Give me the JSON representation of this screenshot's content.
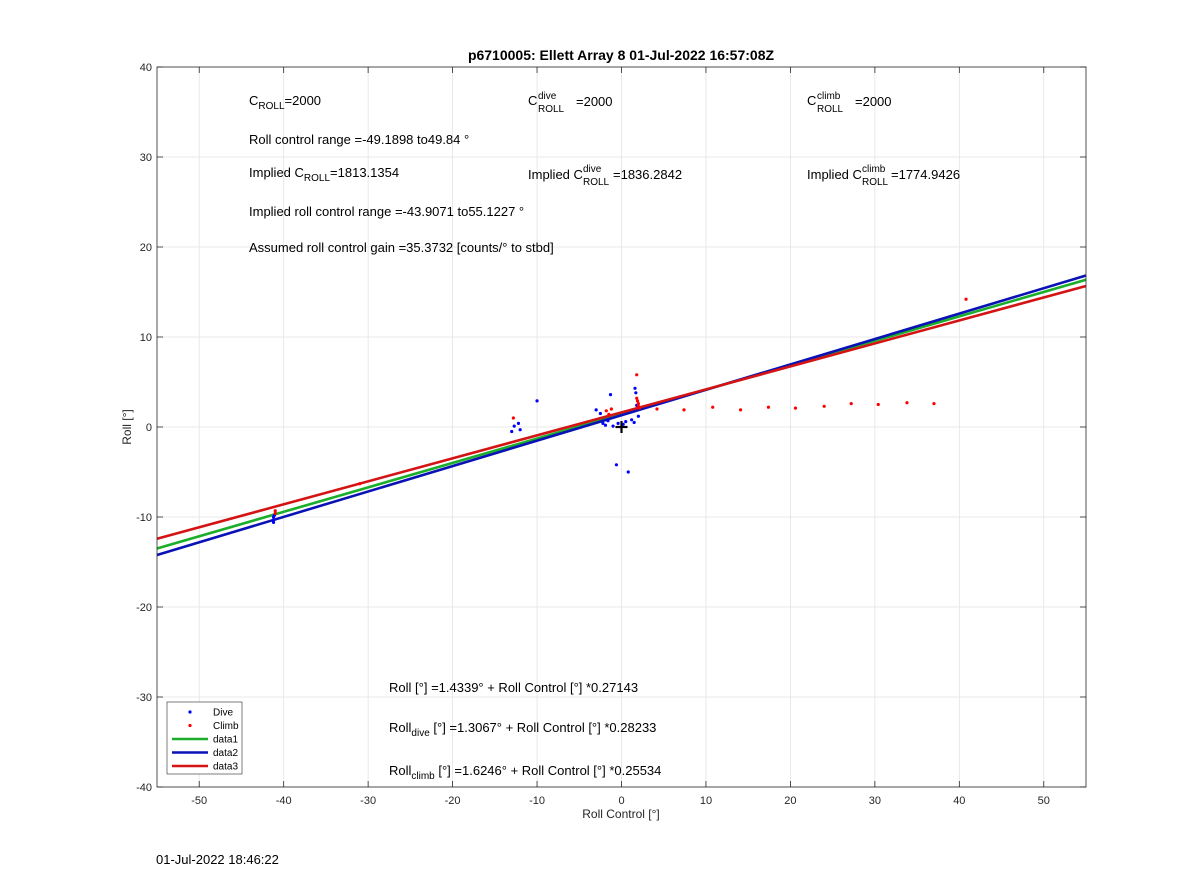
{
  "chart_data": {
    "type": "scatter",
    "title": "p6710005: Ellett Array 8 01-Jul-2022 16:57:08Z",
    "xlabel": "Roll Control [°]",
    "ylabel": "Roll [°]",
    "xlim": [
      -55,
      55
    ],
    "ylim": [
      -40,
      40
    ],
    "xticks": [
      -50,
      -40,
      -30,
      -20,
      -10,
      0,
      10,
      20,
      30,
      40,
      50
    ],
    "yticks": [
      -40,
      -30,
      -20,
      -10,
      0,
      10,
      20,
      30,
      40
    ],
    "grid": true,
    "legend_position": "bottom-left",
    "series": [
      {
        "name": "Dive",
        "kind": "points",
        "color": "#0000ff",
        "points": [
          [
            -41.2,
            -10.6
          ],
          [
            -41.2,
            -10.3
          ],
          [
            -41.2,
            -10.0
          ],
          [
            -41.1,
            -9.8
          ],
          [
            -13.0,
            -0.5
          ],
          [
            -12.7,
            0.1
          ],
          [
            -12.2,
            0.4
          ],
          [
            -12.0,
            -0.3
          ],
          [
            -10.0,
            2.9
          ],
          [
            -3.0,
            1.9
          ],
          [
            -2.5,
            1.5
          ],
          [
            -2.2,
            0.4
          ],
          [
            -1.9,
            0.2
          ],
          [
            -1.6,
            0.7
          ],
          [
            -1.3,
            3.6
          ],
          [
            -1.0,
            0.1
          ],
          [
            -0.6,
            -4.2
          ],
          [
            -0.4,
            0.4
          ],
          [
            0.2,
            0.3
          ],
          [
            0.5,
            0.6
          ],
          [
            0.8,
            -5.0
          ],
          [
            1.2,
            0.8
          ],
          [
            1.5,
            0.5
          ],
          [
            1.6,
            4.3
          ],
          [
            1.7,
            3.8
          ],
          [
            1.8,
            2.4
          ],
          [
            2.0,
            1.2
          ]
        ]
      },
      {
        "name": "Climb",
        "kind": "points",
        "color": "#ff0000",
        "points": [
          [
            -41.0,
            -9.3
          ],
          [
            -41.0,
            -9.6
          ],
          [
            -31.0,
            -6.3
          ],
          [
            -12.8,
            1.0
          ],
          [
            -1.8,
            1.8
          ],
          [
            -1.5,
            1.4
          ],
          [
            -1.2,
            2.0
          ],
          [
            1.8,
            5.8
          ],
          [
            1.8,
            3.2
          ],
          [
            1.9,
            2.9
          ],
          [
            2.0,
            2.6
          ],
          [
            2.0,
            2.3
          ],
          [
            2.1,
            2.1
          ],
          [
            4.2,
            2.0
          ],
          [
            7.4,
            1.9
          ],
          [
            10.8,
            2.2
          ],
          [
            14.1,
            1.9
          ],
          [
            17.4,
            2.2
          ],
          [
            20.6,
            2.1
          ],
          [
            24.0,
            2.3
          ],
          [
            27.2,
            2.6
          ],
          [
            30.4,
            2.5
          ],
          [
            33.8,
            2.7
          ],
          [
            37.0,
            2.6
          ],
          [
            40.8,
            14.2
          ]
        ]
      },
      {
        "name": "data1",
        "kind": "line",
        "color": "#1aae2a",
        "intercept": 1.4339,
        "slope": 0.27143
      },
      {
        "name": "data2",
        "kind": "line",
        "color": "#0a12b5",
        "intercept": 1.3067,
        "slope": 0.28233
      },
      {
        "name": "data3",
        "kind": "line",
        "color": "#d41414",
        "intercept": 1.6246,
        "slope": 0.25534
      }
    ],
    "marker": {
      "x": 0,
      "y": 0,
      "symbol": "+"
    },
    "annotations": {
      "c_roll": "=2000",
      "c_roll_dive": "=2000",
      "c_roll_climb": "=2000",
      "roll_control_range": "Roll control range =-49.1898 to49.84 °",
      "implied_c_roll": "=1813.1354",
      "implied_c_roll_dive": "=1836.2842",
      "implied_c_roll_climb": "=1774.9426",
      "implied_range": "Implied roll control range =-43.9071 to55.1227 °",
      "gain": "Assumed roll control gain =35.3732 [counts/° to stbd]",
      "fit_all": "[°] =1.4339° + Roll Control [°] *0.27143",
      "fit_dive": "[°] =1.3067° + Roll Control [°] *0.28233",
      "fit_climb": "[°] =1.6246° + Roll Control [°] *0.25534"
    },
    "symbols": {
      "C": "C",
      "ROLL": "ROLL",
      "dive": "dive",
      "climb": "climb",
      "implied": "Implied ",
      "roll": "Roll"
    }
  },
  "footer": {
    "timestamp": "01-Jul-2022 18:46:22"
  }
}
